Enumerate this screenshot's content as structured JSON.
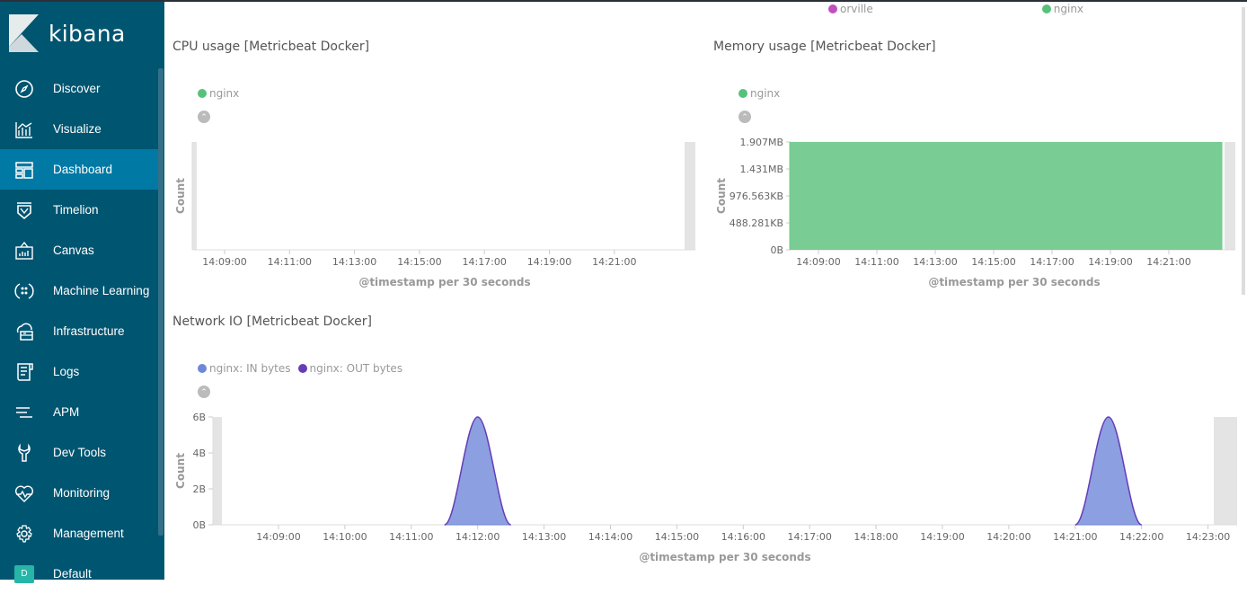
{
  "app": {
    "name": "kibana"
  },
  "sidebar": {
    "items": [
      {
        "label": "Discover",
        "icon": "compass-icon"
      },
      {
        "label": "Visualize",
        "icon": "visualize-icon"
      },
      {
        "label": "Dashboard",
        "icon": "dashboard-icon",
        "active": true
      },
      {
        "label": "Timelion",
        "icon": "timelion-icon"
      },
      {
        "label": "Canvas",
        "icon": "canvas-icon"
      },
      {
        "label": "Machine Learning",
        "icon": "machine-learning-icon"
      },
      {
        "label": "Infrastructure",
        "icon": "infrastructure-icon"
      },
      {
        "label": "Logs",
        "icon": "logs-icon"
      },
      {
        "label": "APM",
        "icon": "apm-icon"
      },
      {
        "label": "Dev Tools",
        "icon": "dev-tools-icon"
      },
      {
        "label": "Monitoring",
        "icon": "monitoring-icon"
      },
      {
        "label": "Management",
        "icon": "gear-icon"
      },
      {
        "label": "Default",
        "badge": "D"
      }
    ],
    "colors": {
      "bg": "#005571",
      "active": "#0079a5"
    }
  },
  "top_legend": [
    {
      "label": "orville",
      "color": "#c04fc0"
    },
    {
      "label": "nginx",
      "color": "#57c17b"
    }
  ],
  "panels": {
    "cpu": {
      "title": "CPU usage [Metricbeat Docker]",
      "legend": [
        {
          "label": "nginx",
          "color": "#57c17b"
        }
      ],
      "chart_data": {
        "type": "area",
        "ylabel": "Count",
        "xlabel": "@timestamp per 30 seconds",
        "x_ticks": [
          "14:09:00",
          "14:11:00",
          "14:13:00",
          "14:15:00",
          "14:17:00",
          "14:19:00",
          "14:21:00"
        ],
        "series": [
          {
            "name": "nginx",
            "values": []
          }
        ]
      }
    },
    "memory": {
      "title": "Memory usage [Metricbeat Docker]",
      "legend": [
        {
          "label": "nginx",
          "color": "#57c17b"
        }
      ],
      "chart_data": {
        "type": "area",
        "ylabel": "Count",
        "xlabel": "@timestamp per 30 seconds",
        "y_ticks": [
          "0B",
          "488.281KB",
          "976.563KB",
          "1.431MB",
          "1.907MB"
        ],
        "x_ticks": [
          "14:09:00",
          "14:11:00",
          "14:13:00",
          "14:15:00",
          "14:17:00",
          "14:19:00",
          "14:21:00"
        ],
        "series": [
          {
            "name": "nginx",
            "color": "#78cc94",
            "x_range": [
              "14:08:00",
              "14:22:50"
            ],
            "value": "1.907MB"
          }
        ]
      }
    },
    "network": {
      "title": "Network IO [Metricbeat Docker]",
      "legend": [
        {
          "label": "nginx: IN bytes",
          "color": "#6f87d8"
        },
        {
          "label": "nginx: OUT bytes",
          "color": "#663db8"
        }
      ],
      "chart_data": {
        "type": "area",
        "ylabel": "Count",
        "xlabel": "@timestamp per 30 seconds",
        "y_ticks": [
          "0B",
          "2B",
          "4B",
          "6B"
        ],
        "ylim": [
          0,
          6
        ],
        "x_ticks": [
          "14:09:00",
          "14:10:00",
          "14:11:00",
          "14:12:00",
          "14:13:00",
          "14:14:00",
          "14:15:00",
          "14:16:00",
          "14:17:00",
          "14:18:00",
          "14:19:00",
          "14:20:00",
          "14:21:00",
          "14:22:00",
          "14:23:00"
        ],
        "series": [
          {
            "name": "nginx: IN bytes",
            "color": "#6f87d8",
            "points": [
              [
                "14:11:30",
                0
              ],
              [
                "14:12:00",
                6
              ],
              [
                "14:12:30",
                0
              ],
              [
                "14:21:00",
                0
              ],
              [
                "14:21:30",
                6
              ],
              [
                "14:22:00",
                0
              ]
            ]
          },
          {
            "name": "nginx: OUT bytes",
            "color": "#663db8",
            "points": [
              [
                "14:11:30",
                0
              ],
              [
                "14:12:00",
                6
              ],
              [
                "14:12:30",
                0
              ],
              [
                "14:21:00",
                0
              ],
              [
                "14:21:30",
                6
              ],
              [
                "14:22:00",
                0
              ]
            ]
          }
        ]
      }
    }
  }
}
